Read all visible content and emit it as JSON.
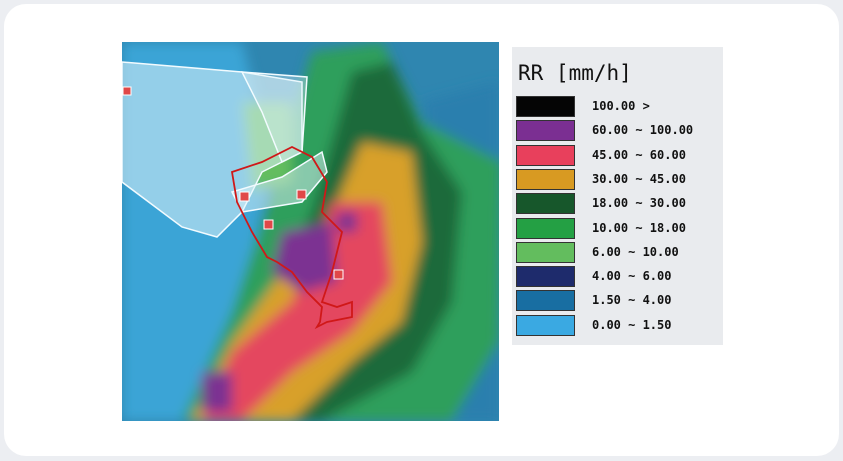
{
  "legend": {
    "title": "RR [mm/h]",
    "items": [
      {
        "label": "100.00 >",
        "color": "#050505"
      },
      {
        "label": "60.00 ~ 100.00",
        "color": "#7b2f92"
      },
      {
        "label": "45.00 ~ 60.00",
        "color": "#e8405c"
      },
      {
        "label": "30.00 ~ 45.00",
        "color": "#d89a22"
      },
      {
        "label": "18.00 ~ 30.00",
        "color": "#17572b"
      },
      {
        "label": "10.00 ~ 18.00",
        "color": "#24a044"
      },
      {
        "label": "6.00 ~ 10.00",
        "color": "#63bd5e"
      },
      {
        "label": "4.00 ~ 6.00",
        "color": "#1e2b6c"
      },
      {
        "label": "1.50 ~ 4.00",
        "color": "#186ea2"
      },
      {
        "label": "0.00 ~ 1.50",
        "color": "#3aa9e2"
      }
    ]
  }
}
